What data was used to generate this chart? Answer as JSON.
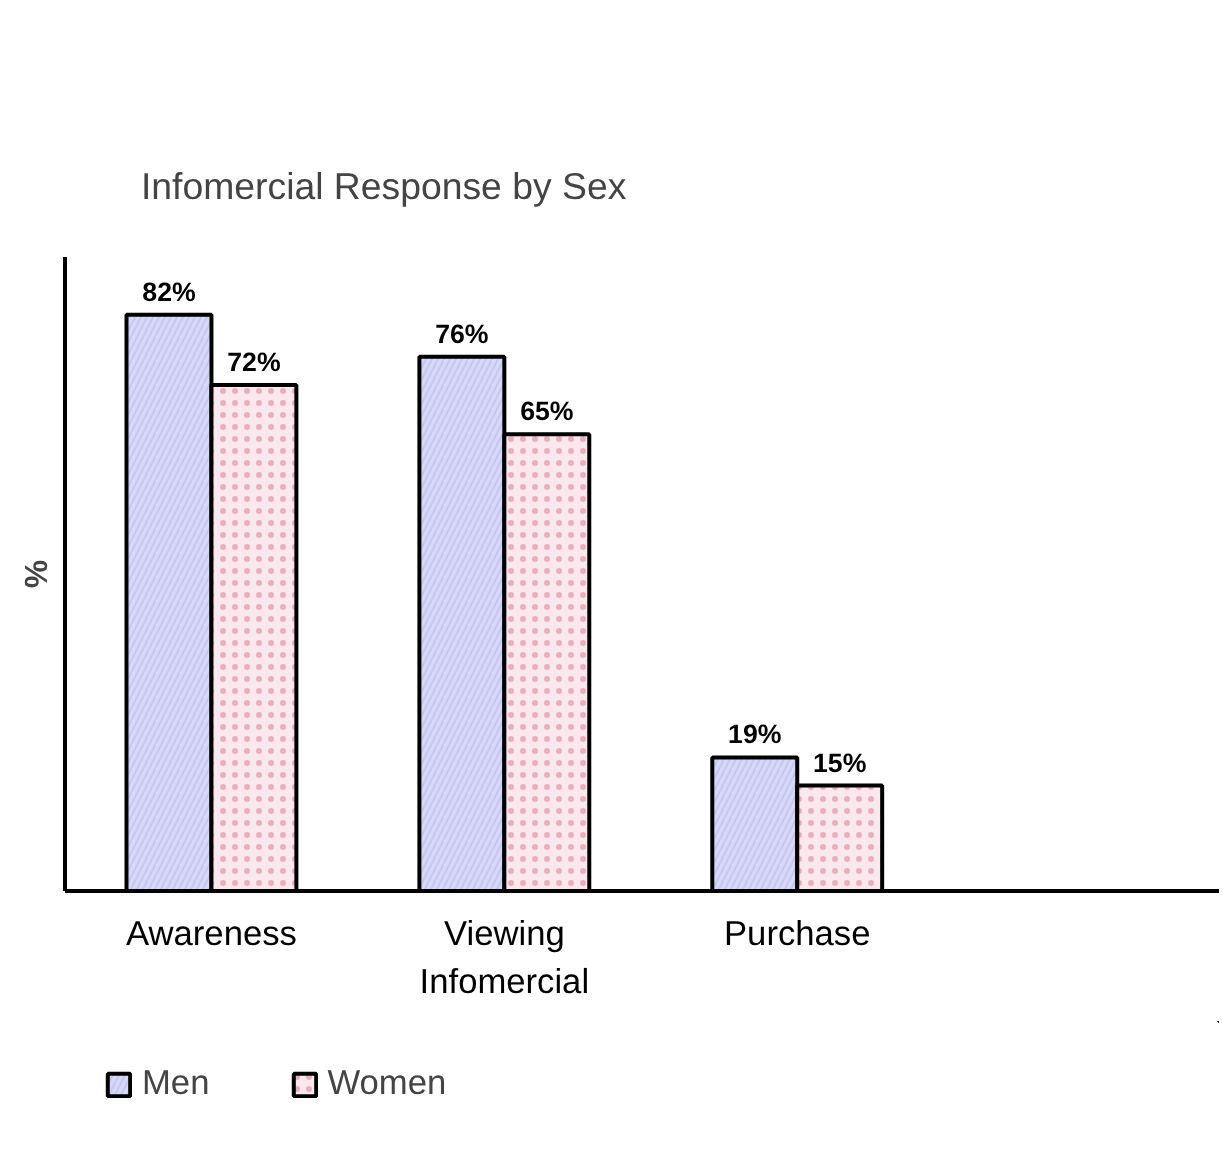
{
  "chart_data": {
    "type": "bar",
    "title": "Infomercial Response by Sex",
    "ylabel": "%",
    "categories": [
      "Awareness",
      "Viewing\nInfomercial",
      "Purchase"
    ],
    "series": [
      {
        "name": "Men",
        "color": "#d8d8f8",
        "values": [
          82,
          76,
          19
        ],
        "value_labels": [
          "82%",
          "76%",
          "19%"
        ]
      },
      {
        "name": "Women",
        "color": "#fae8ee",
        "values": [
          72,
          65,
          15
        ],
        "value_labels": [
          "72%",
          "65%",
          "15%"
        ]
      }
    ],
    "legend": "bottom left"
  }
}
